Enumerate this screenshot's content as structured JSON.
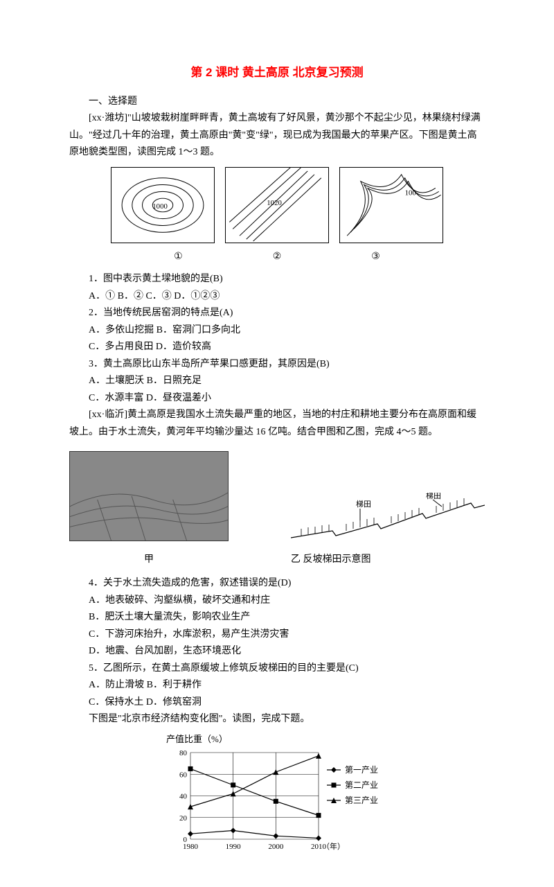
{
  "title": "第 2 课时  黄土高原  北京复习预测",
  "section_heading": "一、选择题",
  "intro1_a": "[xx·潍坊]\"山坡坡栽树崖畔畔青，黄土高坡有了好风景，黄沙那个不起尘少见，林果绕村绿满山。\"经过几十年的治理，黄土高原由\"黄\"变\"绿\"，现已成为我国最大的苹果产区。下图是黄土高原地貌类型图，读图完成 1～3 题。",
  "contour_labels": {
    "one": "①",
    "two": "②",
    "three": "③"
  },
  "q1": "1．图中表示黄土墚地貌的是(B)",
  "q1_opts": "A．①  B．②  C．③  D．①②③",
  "q2": "2．当地传统民居窑洞的特点是(A)",
  "q2_opts_a": "A．多依山挖掘  B．窑洞门口多向北",
  "q2_opts_b": "C．多占用良田  D．造价较高",
  "q3": "3．黄土高原比山东半岛所产苹果口感更甜，其原因是(B)",
  "q3_opts_a": "A．土壤肥沃  B．日照充足",
  "q3_opts_b": "C．水源丰富  D．昼夜温差小",
  "intro2": "[xx·临沂]黄土高原是我国水土流失最严重的地区，当地的村庄和耕地主要分布在高原面和缓坡上。由于水土流失，黄河年平均输沙量达 16 亿吨。结合甲图和乙图，完成 4～5 题。",
  "fig2_right_labels": {
    "t1": "梯田",
    "t2": "梯田"
  },
  "cap_left": "甲",
  "cap_right": "乙  反坡梯田示意图",
  "q4": "4．关于水土流失造成的危害，叙述错误的是(D)",
  "q4_a": "A．地表破碎、沟壑纵横，破坏交通和村庄",
  "q4_b": "B．肥沃土壤大量流失，影响农业生产",
  "q4_c": "C．下游河床抬升，水库淤积，易产生洪涝灾害",
  "q4_d": "D．地震、台风加剧，生态环境恶化",
  "q5": "5．乙图所示，在黄土高原缓坡上修筑反坡梯田的目的主要是(C)",
  "q5_a": "A．防止滑坡  B．利于耕作",
  "q5_b": "C．保持水土  D．修筑窑洞",
  "chart_intro": "下图是\"北京市经济结构变化图\"。读图，完成下题。",
  "chart": {
    "type": "line",
    "title": "产值比重（%）",
    "x_values": [
      1980,
      1990,
      2000,
      2010
    ],
    "x_label_suffix": "（年）",
    "y_ticks": [
      0,
      20,
      40,
      60,
      80
    ],
    "ylim": [
      0,
      80
    ],
    "series": [
      {
        "name": "第一产业",
        "marker": "diamond",
        "points": [
          5,
          8,
          3,
          1
        ]
      },
      {
        "name": "第二产业",
        "marker": "square",
        "points": [
          65,
          50,
          35,
          22
        ]
      },
      {
        "name": "第三产业",
        "marker": "triangle",
        "points": [
          30,
          42,
          62,
          77
        ]
      }
    ],
    "stroke": "#000000",
    "grid_color": "#000000",
    "background": "#ffffff"
  }
}
